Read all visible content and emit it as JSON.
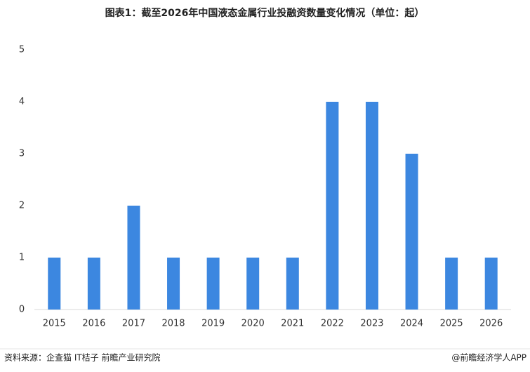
{
  "chart_data": {
    "type": "bar",
    "title": "图表1：截至2026年中国液态金属行业投融资数量变化情况（单位：起）",
    "categories": [
      "2015",
      "2016",
      "2017",
      "2018",
      "2019",
      "2020",
      "2021",
      "2022",
      "2023",
      "2024",
      "2025",
      "2026"
    ],
    "values": [
      1,
      1,
      2,
      1,
      1,
      1,
      1,
      4,
      4,
      3,
      1,
      1
    ],
    "color": "#3c87e0",
    "ylim": [
      0,
      5
    ],
    "yticks": [
      0,
      1,
      2,
      3,
      4,
      5
    ],
    "grid": false
  },
  "footer": {
    "source": "资料来源：企查猫 IT桔子 前瞻产业研究院",
    "credit": "@前瞻经济学人APP"
  }
}
